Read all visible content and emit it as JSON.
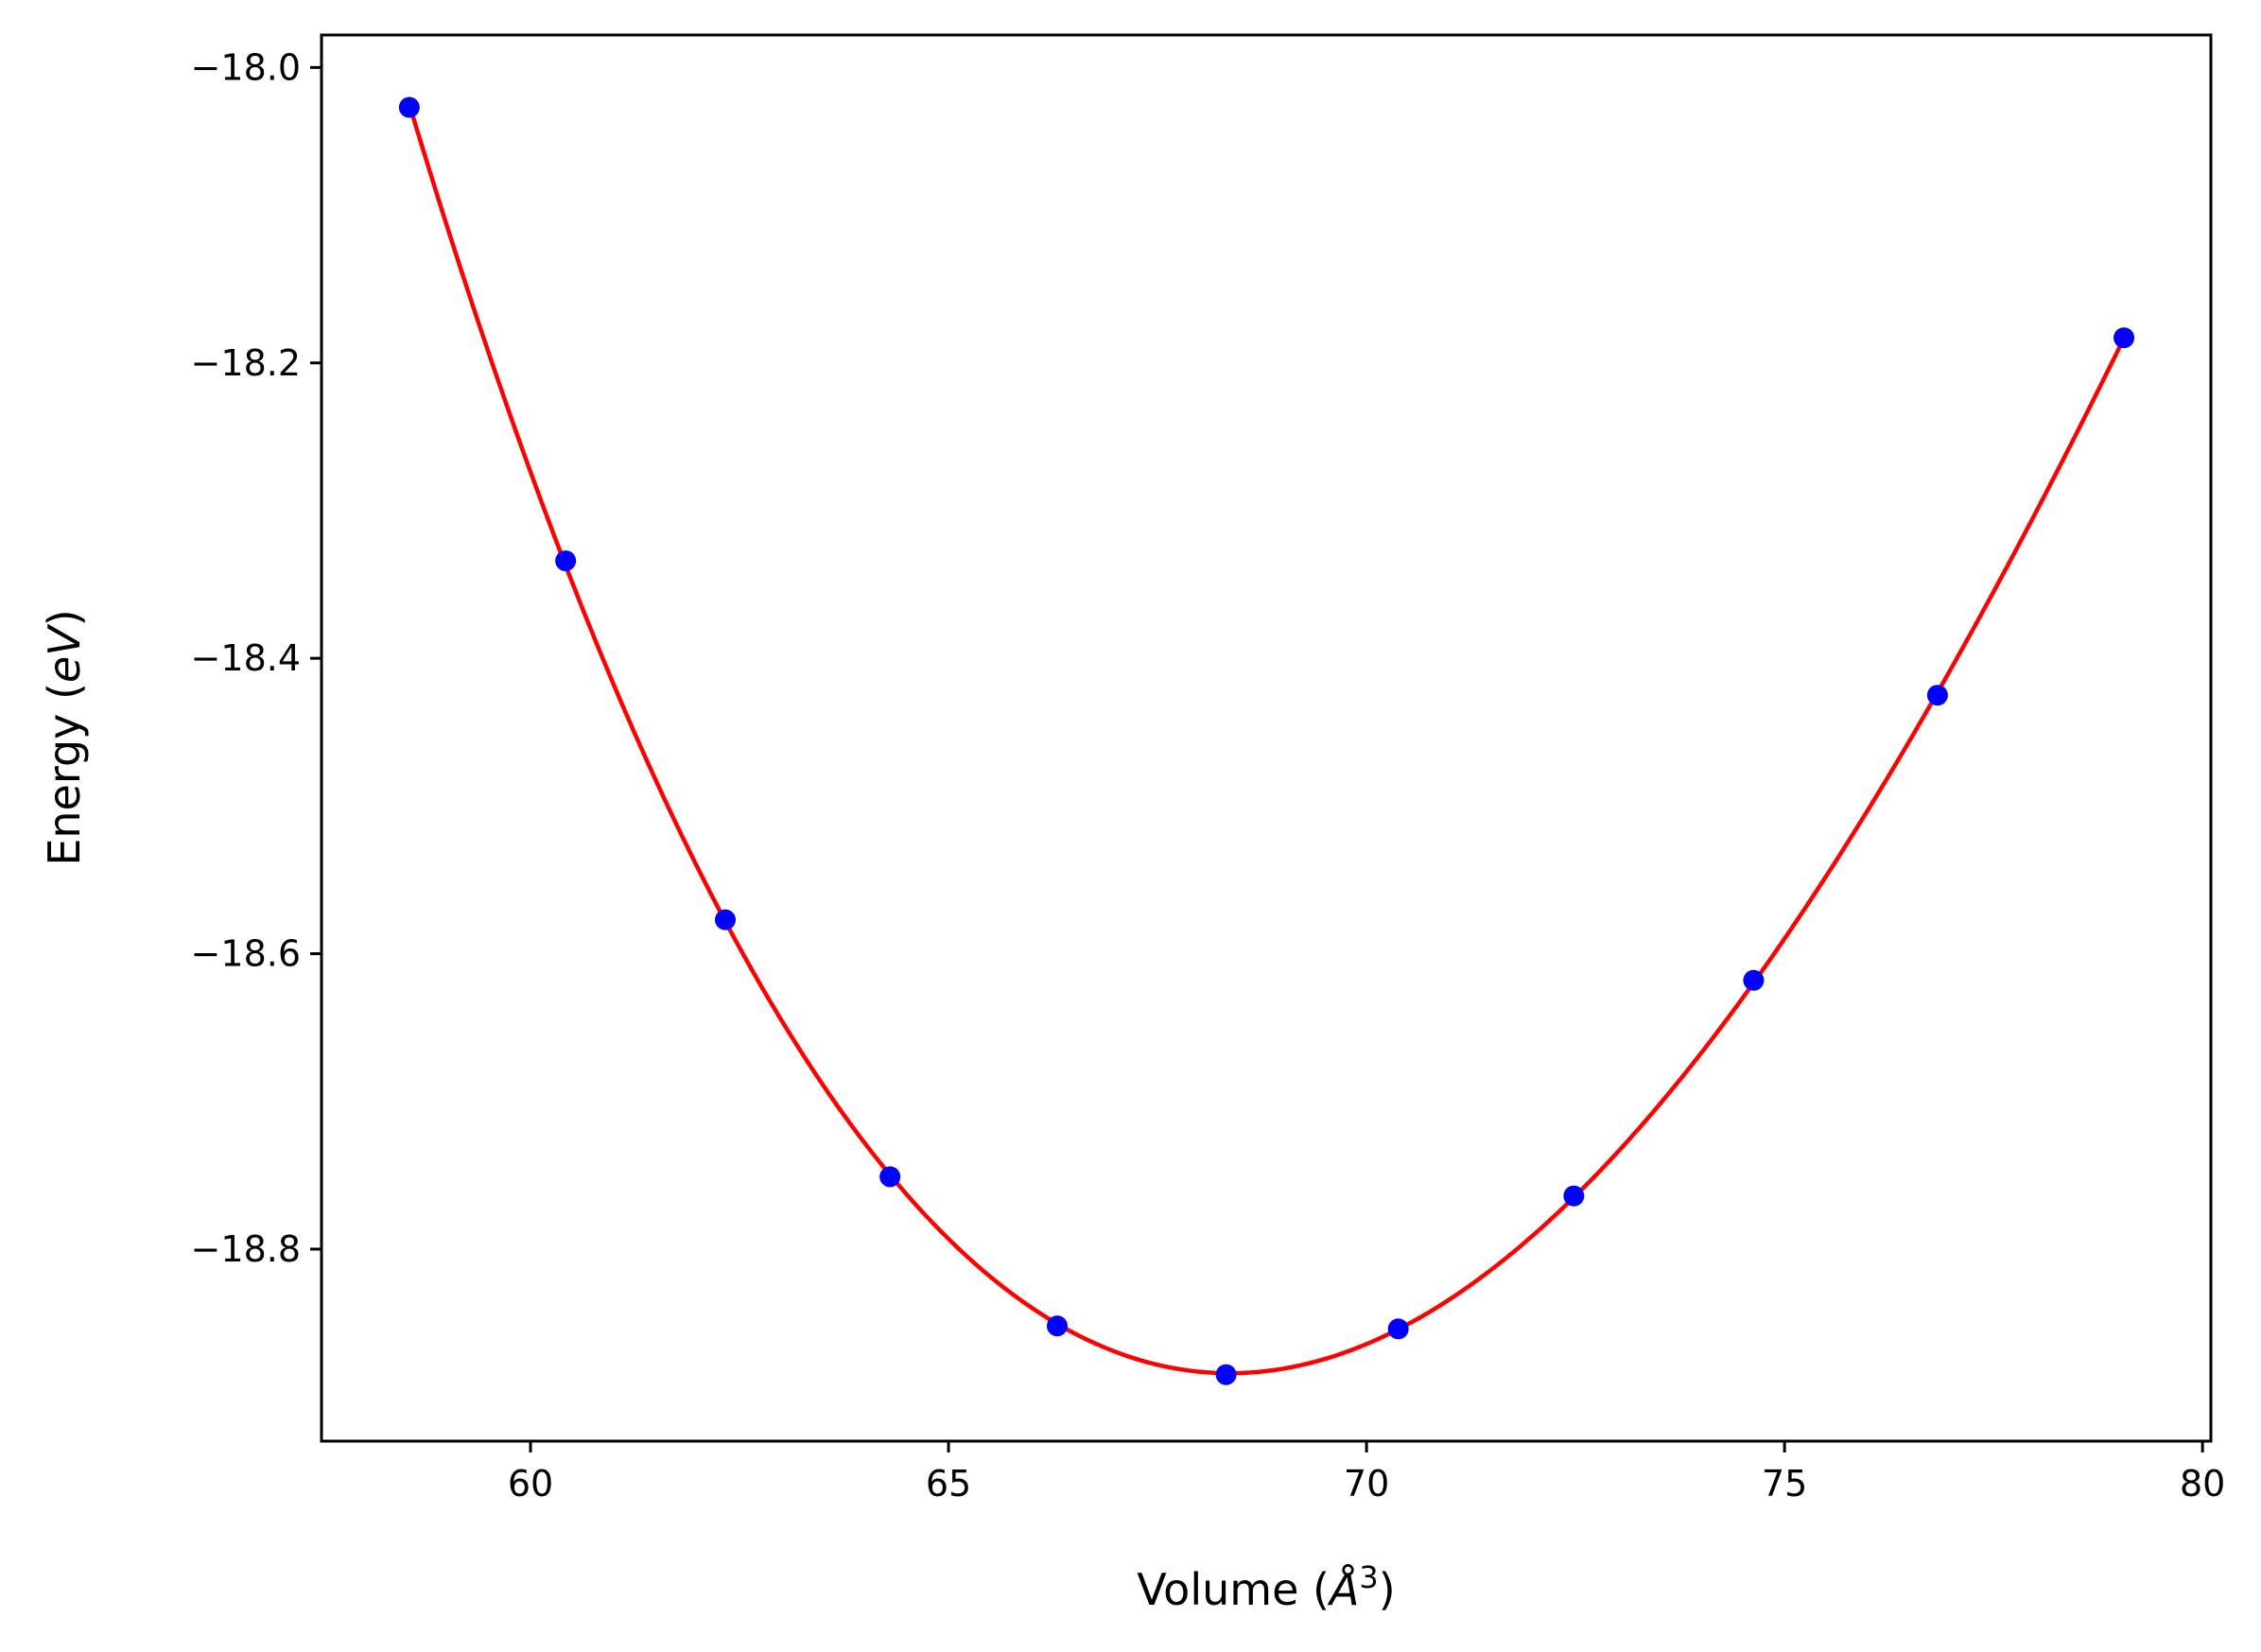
{
  "chart_data": {
    "type": "scatter",
    "title": "",
    "xlabel": {
      "text": "Volume (",
      "italic": "Å",
      "sup": "3",
      "close": ")"
    },
    "ylabel": {
      "text": "Energy (",
      "italic": "eV",
      "close": ")"
    },
    "xlim": [
      57.5,
      80.1
    ],
    "ylim": [
      -18.93,
      -17.978
    ],
    "xticks": [
      60,
      65,
      70,
      75,
      80
    ],
    "xtick_labels": [
      "60",
      "65",
      "70",
      "75",
      "80"
    ],
    "yticks": [
      -18.0,
      -18.2,
      -18.4,
      -18.6,
      -18.8
    ],
    "ytick_labels": [
      "−18.0",
      "−18.2",
      "−18.4",
      "−18.6",
      "−18.8"
    ],
    "grid": false,
    "series": [
      {
        "kind": "points",
        "color": "#0000ff",
        "x": [
          58.55,
          60.42,
          62.33,
          64.3,
          66.3,
          68.32,
          70.38,
          72.48,
          74.63,
          76.83,
          79.06
        ],
        "y": [
          -18.027,
          -18.334,
          -18.577,
          -18.751,
          -18.852,
          -18.885,
          -18.854,
          -18.764,
          -18.618,
          -18.425,
          -18.183
        ]
      },
      {
        "kind": "fit-line",
        "color": "#ff0000",
        "x_range": [
          58.55,
          79.06
        ],
        "fit_points": {
          "x": [
            58.55,
            60.42,
            62.33,
            64.3,
            66.3,
            68.32,
            70.38,
            72.48,
            74.63,
            76.83,
            79.06
          ],
          "y": [
            -18.027,
            -18.334,
            -18.577,
            -18.751,
            -18.852,
            -18.885,
            -18.854,
            -18.764,
            -18.618,
            -18.425,
            -18.183
          ]
        },
        "poly_degree": 3
      }
    ]
  }
}
